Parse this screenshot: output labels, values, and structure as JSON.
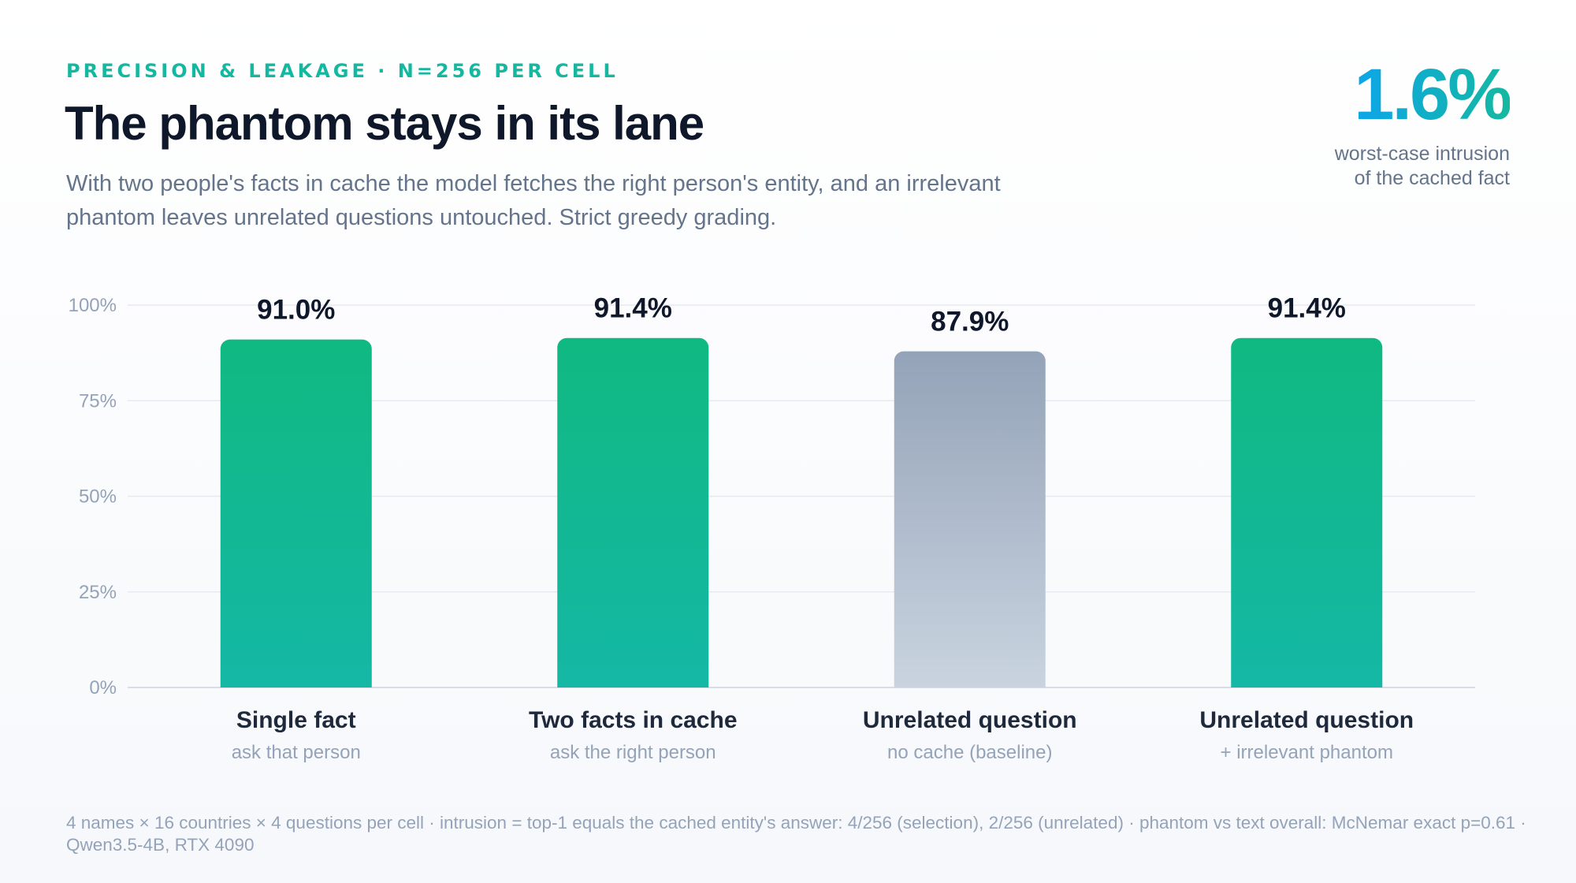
{
  "header": {
    "eyebrow": "PRECISION & LEAKAGE · N=256 PER CELL",
    "title": "The phantom stays in its lane",
    "subtitle": "With two people's facts in cache the model fetches the right person's entity, and an irrelevant phantom leaves unrelated questions untouched. Strict greedy grading."
  },
  "kpi": {
    "value": "1.6%",
    "label_line1": "worst-case intrusion",
    "label_line2": "of the cached fact"
  },
  "chart_data": {
    "type": "bar",
    "categories": [
      "Single fact",
      "Two facts in cache",
      "Unrelated question",
      "Unrelated question"
    ],
    "sublabels": [
      "ask that person",
      "ask the right person",
      "no cache (baseline)",
      "+ irrelevant phantom"
    ],
    "values": [
      91.0,
      91.4,
      87.9,
      91.4
    ],
    "value_labels": [
      "91.0%",
      "91.4%",
      "87.9%",
      "91.4%"
    ],
    "bar_styles": [
      "accent",
      "accent",
      "baseline",
      "accent"
    ],
    "ylim": [
      0,
      100
    ],
    "yticks": [
      0,
      25,
      50,
      75,
      100
    ],
    "ytick_labels": [
      "0%",
      "25%",
      "50%",
      "75%",
      "100%"
    ],
    "grid": true,
    "colors": {
      "accent_top": "#10b981",
      "accent_bottom": "#14b8a6",
      "baseline_top": "#94a3b8",
      "baseline_bottom": "#cbd5e1",
      "grid": "#e6eaf0",
      "axis": "#d8dee6"
    }
  },
  "footnote": "4 names × 16 countries × 4 questions per cell · intrusion = top-1 equals the cached entity's answer: 4/256 (selection), 2/256 (unrelated) · phantom vs text overall: McNemar exact p=0.61 · Qwen3.5-4B, RTX 4090"
}
